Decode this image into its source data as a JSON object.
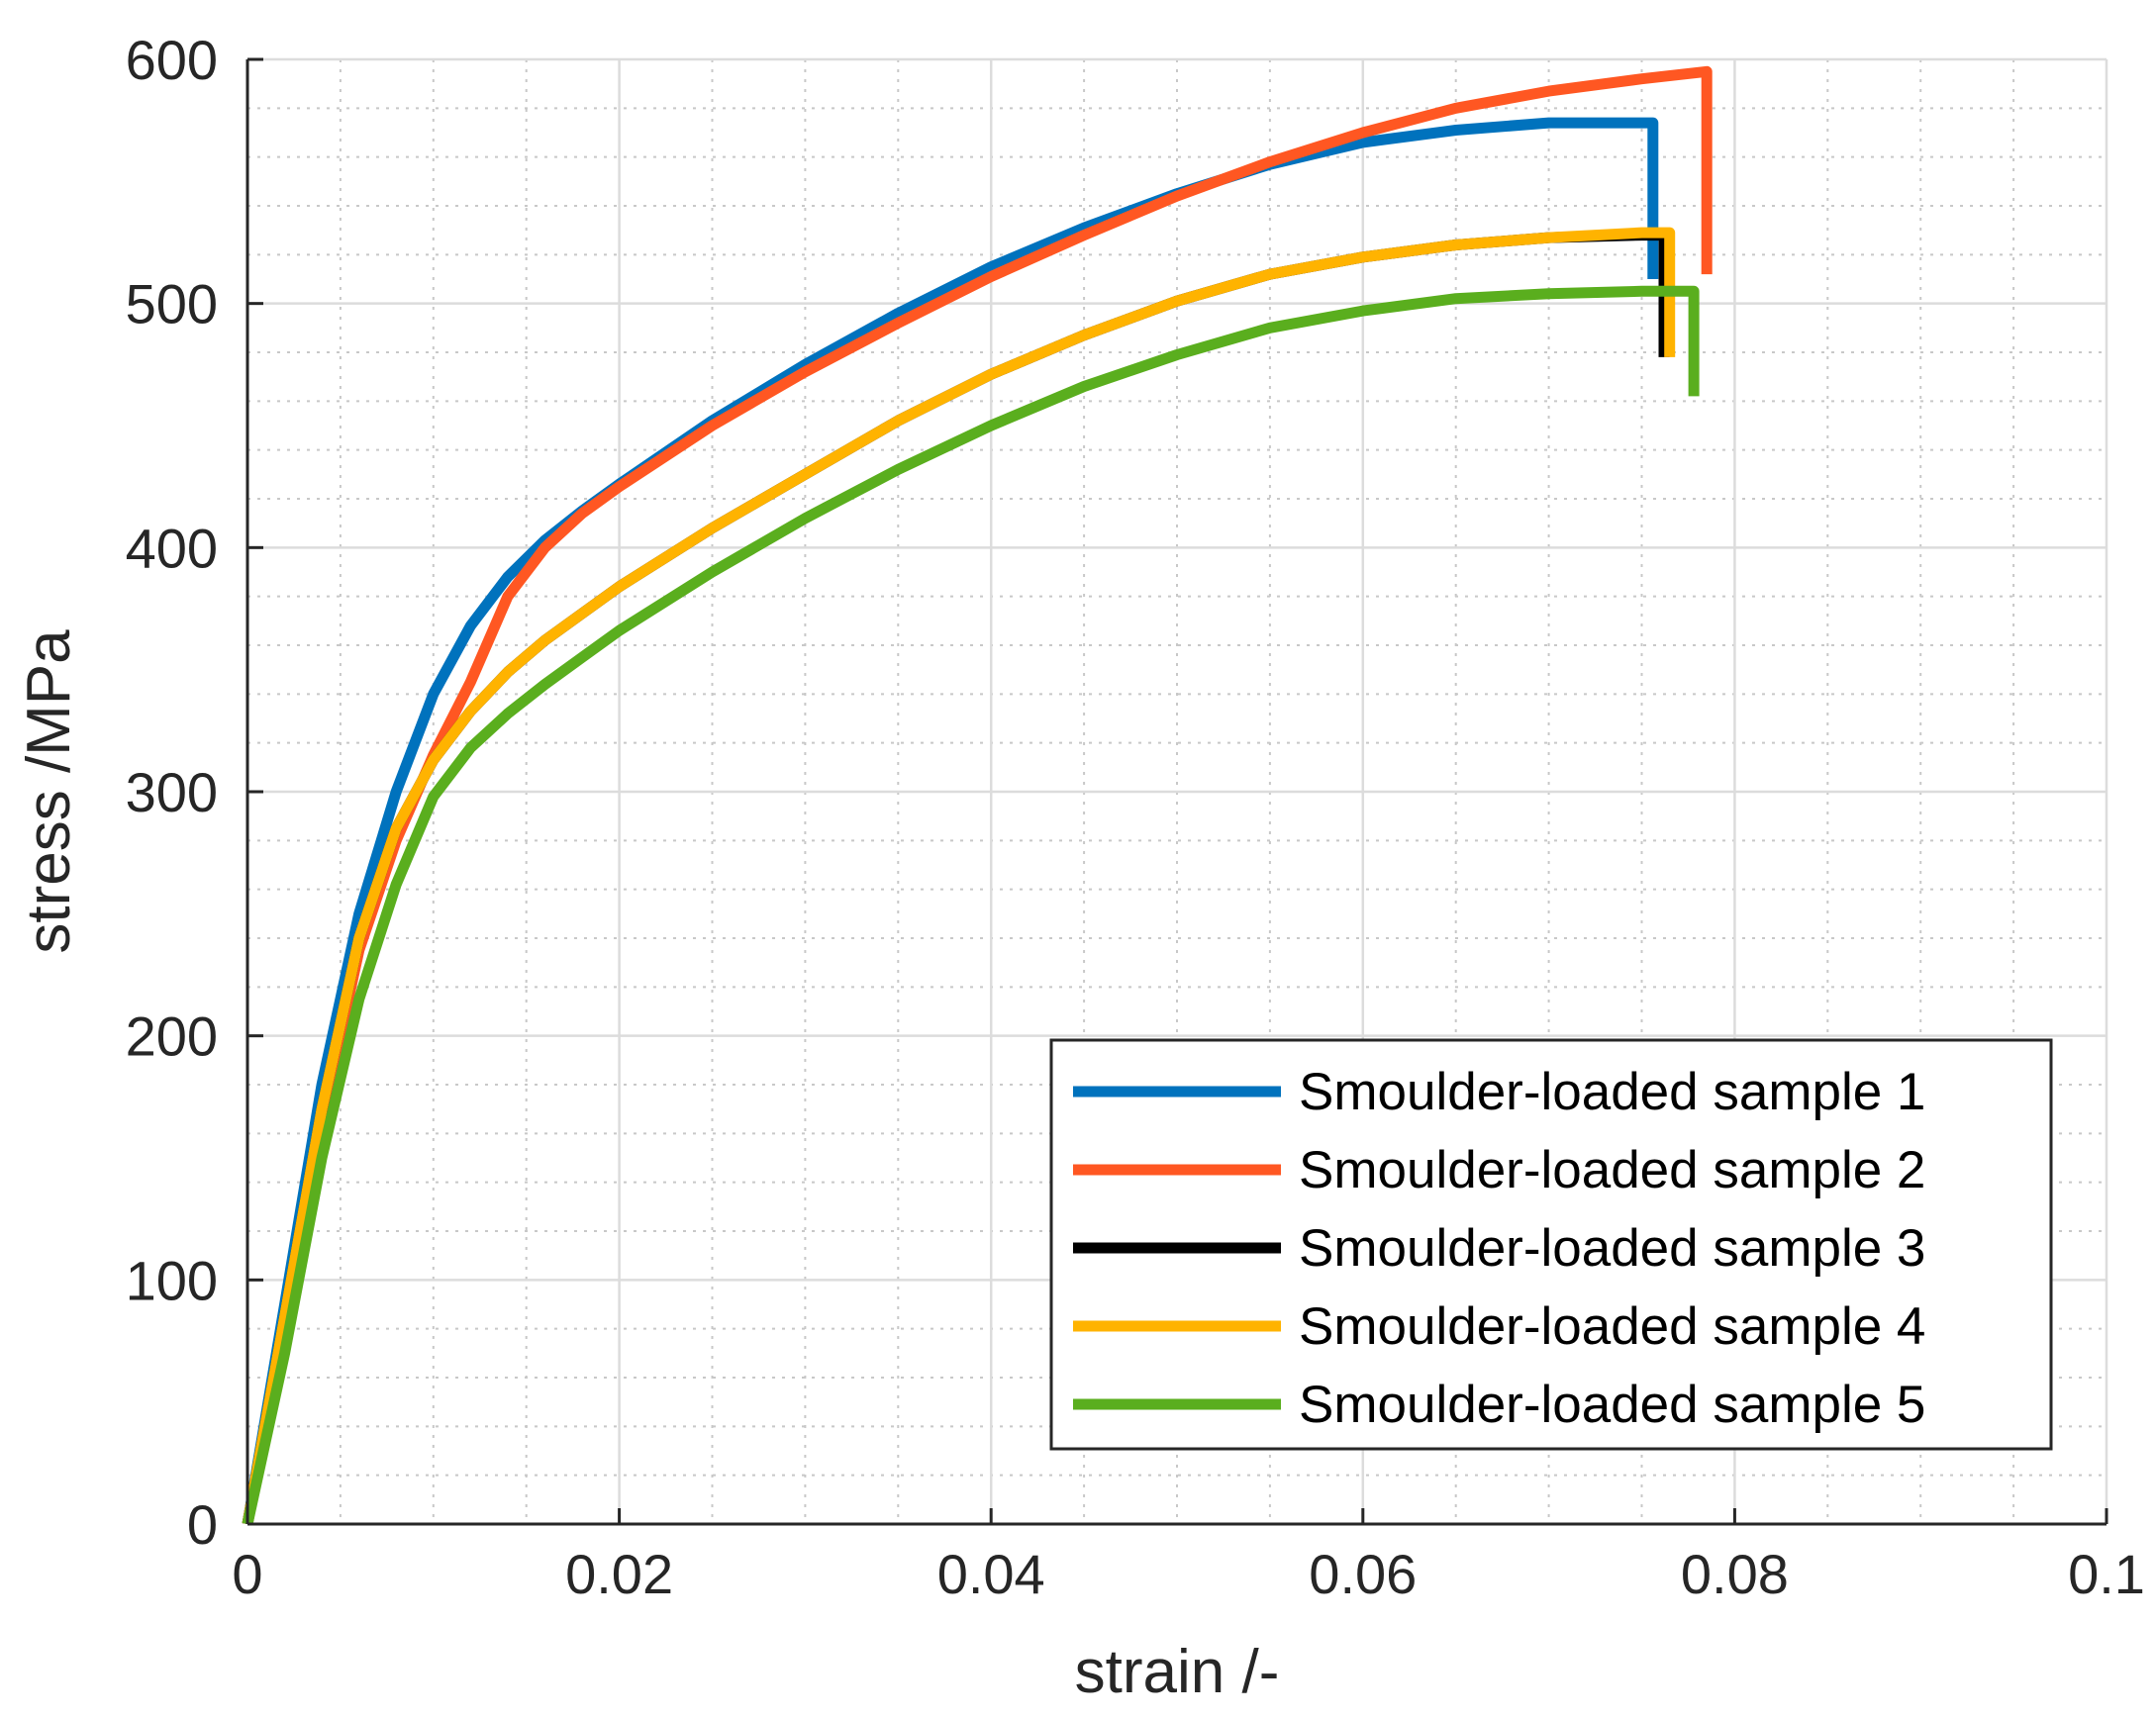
{
  "chart_data": {
    "type": "line",
    "title": "",
    "xlabel": "strain /-",
    "ylabel": "stress /MPa",
    "xlim": [
      0,
      0.1
    ],
    "ylim": [
      0,
      600
    ],
    "grid": true,
    "minor_grid": true,
    "legend_position": "bottom-right",
    "x_ticks": [
      0,
      0.02,
      0.04,
      0.06,
      0.08,
      0.1
    ],
    "x_tick_labels": [
      "0",
      "0.02",
      "0.04",
      "0.06",
      "0.08",
      "0.1"
    ],
    "y_ticks": [
      0,
      100,
      200,
      300,
      400,
      500,
      600
    ],
    "y_tick_labels": [
      "0",
      "100",
      "200",
      "300",
      "400",
      "500",
      "600"
    ],
    "series": [
      {
        "name": "Smoulder-loaded sample 1",
        "color": "#0072BD",
        "points": [
          [
            0,
            0
          ],
          [
            0.002,
            90
          ],
          [
            0.004,
            180
          ],
          [
            0.006,
            250
          ],
          [
            0.008,
            300
          ],
          [
            0.01,
            340
          ],
          [
            0.012,
            368
          ],
          [
            0.014,
            388
          ],
          [
            0.016,
            403
          ],
          [
            0.018,
            415
          ],
          [
            0.02,
            426
          ],
          [
            0.025,
            452
          ],
          [
            0.03,
            475
          ],
          [
            0.035,
            496
          ],
          [
            0.04,
            515
          ],
          [
            0.045,
            531
          ],
          [
            0.05,
            545
          ],
          [
            0.055,
            557
          ],
          [
            0.06,
            566
          ],
          [
            0.065,
            571
          ],
          [
            0.07,
            574
          ],
          [
            0.075,
            574
          ],
          [
            0.0756,
            574
          ],
          [
            0.0756,
            510
          ]
        ]
      },
      {
        "name": "Smoulder-loaded sample 2",
        "color": "#FF5722",
        "points": [
          [
            0,
            0
          ],
          [
            0.002,
            80
          ],
          [
            0.004,
            165
          ],
          [
            0.006,
            235
          ],
          [
            0.008,
            280
          ],
          [
            0.01,
            315
          ],
          [
            0.012,
            345
          ],
          [
            0.014,
            380
          ],
          [
            0.016,
            400
          ],
          [
            0.018,
            414
          ],
          [
            0.02,
            425
          ],
          [
            0.025,
            450
          ],
          [
            0.03,
            472
          ],
          [
            0.035,
            492
          ],
          [
            0.04,
            511
          ],
          [
            0.045,
            528
          ],
          [
            0.05,
            544
          ],
          [
            0.055,
            558
          ],
          [
            0.06,
            570
          ],
          [
            0.065,
            580
          ],
          [
            0.07,
            587
          ],
          [
            0.075,
            592
          ],
          [
            0.0785,
            595
          ],
          [
            0.0785,
            512
          ]
        ]
      },
      {
        "name": "Smoulder-loaded sample 3",
        "color": "#000000",
        "points": [
          [
            0,
            0
          ],
          [
            0.002,
            85
          ],
          [
            0.004,
            170
          ],
          [
            0.006,
            240
          ],
          [
            0.008,
            285
          ],
          [
            0.01,
            313
          ],
          [
            0.012,
            333
          ],
          [
            0.014,
            349
          ],
          [
            0.016,
            362
          ],
          [
            0.018,
            373
          ],
          [
            0.02,
            384
          ],
          [
            0.025,
            408
          ],
          [
            0.03,
            430
          ],
          [
            0.035,
            452
          ],
          [
            0.04,
            471
          ],
          [
            0.045,
            487
          ],
          [
            0.05,
            501
          ],
          [
            0.055,
            512
          ],
          [
            0.06,
            519
          ],
          [
            0.065,
            524
          ],
          [
            0.07,
            527
          ],
          [
            0.075,
            528
          ],
          [
            0.0762,
            528
          ],
          [
            0.0762,
            478
          ]
        ]
      },
      {
        "name": "Smoulder-loaded sample 4",
        "color": "#FFB300",
        "points": [
          [
            0,
            0
          ],
          [
            0.002,
            85
          ],
          [
            0.004,
            170
          ],
          [
            0.006,
            240
          ],
          [
            0.008,
            285
          ],
          [
            0.01,
            313
          ],
          [
            0.012,
            333
          ],
          [
            0.014,
            349
          ],
          [
            0.016,
            362
          ],
          [
            0.018,
            373
          ],
          [
            0.02,
            384
          ],
          [
            0.025,
            408
          ],
          [
            0.03,
            430
          ],
          [
            0.035,
            452
          ],
          [
            0.04,
            471
          ],
          [
            0.045,
            487
          ],
          [
            0.05,
            501
          ],
          [
            0.055,
            512
          ],
          [
            0.06,
            519
          ],
          [
            0.065,
            524
          ],
          [
            0.07,
            527
          ],
          [
            0.075,
            529
          ],
          [
            0.0765,
            529
          ],
          [
            0.0765,
            478
          ]
        ]
      },
      {
        "name": "Smoulder-loaded sample 5",
        "color": "#5AAE1E",
        "points": [
          [
            0,
            0
          ],
          [
            0.002,
            70
          ],
          [
            0.004,
            150
          ],
          [
            0.006,
            215
          ],
          [
            0.008,
            262
          ],
          [
            0.01,
            298
          ],
          [
            0.012,
            318
          ],
          [
            0.014,
            332
          ],
          [
            0.016,
            344
          ],
          [
            0.018,
            355
          ],
          [
            0.02,
            366
          ],
          [
            0.025,
            390
          ],
          [
            0.03,
            412
          ],
          [
            0.035,
            432
          ],
          [
            0.04,
            450
          ],
          [
            0.045,
            466
          ],
          [
            0.05,
            479
          ],
          [
            0.055,
            490
          ],
          [
            0.06,
            497
          ],
          [
            0.065,
            502
          ],
          [
            0.07,
            504
          ],
          [
            0.075,
            505
          ],
          [
            0.0778,
            505
          ],
          [
            0.0778,
            462
          ]
        ]
      }
    ]
  }
}
